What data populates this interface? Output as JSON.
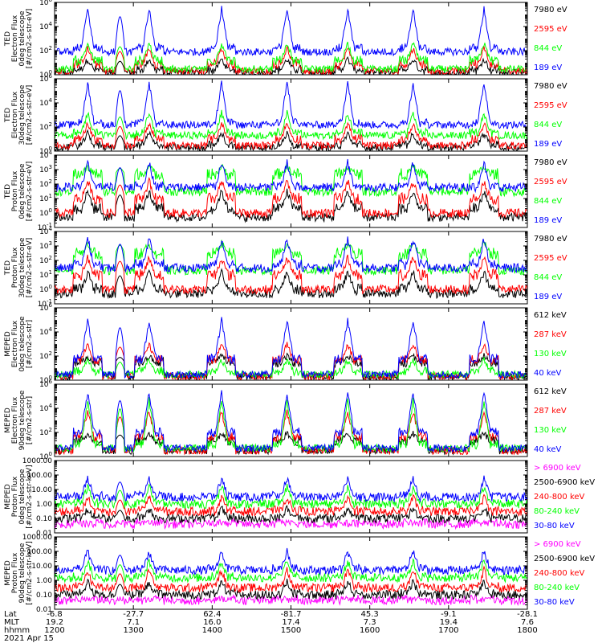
{
  "chart_data": [
    {
      "type": "line",
      "ylabel": [
        "TED",
        "Electron Flux",
        "0deg telescope",
        "[#/cm2-s-str-eV]"
      ],
      "ylim": [
        1,
        1000000
      ],
      "yscale": "log",
      "yticks": [
        {
          "v": 1,
          "b": "10",
          "e": "0"
        },
        {
          "v": 100,
          "b": "10",
          "e": "2"
        },
        {
          "v": 10000,
          "b": "10",
          "e": "4"
        },
        {
          "v": 1000000,
          "b": "10",
          "e": "6"
        }
      ],
      "series": [
        {
          "name": "7980 eV",
          "color": "#000000",
          "level": 2.5,
          "peak": 20,
          "quiet": 1.5
        },
        {
          "name": "2595 eV",
          "color": "#ff0000",
          "level": 8,
          "peak": 150,
          "quiet": 2
        },
        {
          "name": "844 eV",
          "color": "#00ff00",
          "level": 15,
          "peak": 400,
          "quiet": 3
        },
        {
          "name": "189 eV",
          "color": "#0000ff",
          "level": 150,
          "peak": 300000,
          "quiet": 80
        }
      ]
    },
    {
      "type": "line",
      "ylabel": [
        "TED",
        "Electron Flux",
        "30deg telescope",
        "[#/cm2-s-str-eV]"
      ],
      "ylim": [
        1,
        1000000
      ],
      "yscale": "log",
      "yticks": [
        {
          "v": 1,
          "b": "10",
          "e": "0"
        },
        {
          "v": 100,
          "b": "10",
          "e": "2"
        },
        {
          "v": 10000,
          "b": "10",
          "e": "4"
        },
        {
          "v": 1000000,
          "b": "10",
          "e": "6"
        }
      ],
      "series": [
        {
          "name": "7980 eV",
          "color": "#000000",
          "level": 3,
          "peak": 30,
          "quiet": 2
        },
        {
          "name": "2595 eV",
          "color": "#ff0000",
          "level": 10,
          "peak": 200,
          "quiet": 3
        },
        {
          "name": "844 eV",
          "color": "#00ff00",
          "level": 30,
          "peak": 1500,
          "quiet": 20
        },
        {
          "name": "189 eV",
          "color": "#0000ff",
          "level": 200,
          "peak": 500000,
          "quiet": 150
        }
      ]
    },
    {
      "type": "line",
      "ylabel": [
        "TED",
        "Proton Flux",
        "0deg telescope",
        "[#/cm2-s-str-eV]"
      ],
      "ylim": [
        0.1,
        10000
      ],
      "yscale": "log",
      "yticks": [
        {
          "v": 0.1,
          "b": "10",
          "e": "-1"
        },
        {
          "v": 1,
          "b": "10",
          "e": "0"
        },
        {
          "v": 10,
          "b": "10",
          "e": "1"
        },
        {
          "v": 100,
          "b": "10",
          "e": "2"
        },
        {
          "v": 1000,
          "b": "10",
          "e": "3"
        },
        {
          "v": 10000,
          "b": "10",
          "e": "4"
        }
      ],
      "series": [
        {
          "name": "7980 eV",
          "color": "#000000",
          "level": 2,
          "peak": 30,
          "quiet": 0.5
        },
        {
          "name": "2595 eV",
          "color": "#ff0000",
          "level": 10,
          "peak": 150,
          "quiet": 1
        },
        {
          "name": "844 eV",
          "color": "#00ff00",
          "level": 500,
          "peak": 1500,
          "quiet": 30
        },
        {
          "name": "189 eV",
          "color": "#0000ff",
          "level": 60,
          "peak": 3000,
          "quiet": 60
        }
      ]
    },
    {
      "type": "line",
      "ylabel": [
        "TED",
        "Proton Flux",
        "30deg telescope",
        "[#/cm2-s-str-eV]"
      ],
      "ylim": [
        0.1,
        10000
      ],
      "yscale": "log",
      "yticks": [
        {
          "v": 0.1,
          "b": "10",
          "e": "-1"
        },
        {
          "v": 1,
          "b": "10",
          "e": "0"
        },
        {
          "v": 10,
          "b": "10",
          "e": "1"
        },
        {
          "v": 100,
          "b": "10",
          "e": "2"
        },
        {
          "v": 1000,
          "b": "10",
          "e": "3"
        },
        {
          "v": 10000,
          "b": "10",
          "e": "4"
        }
      ],
      "series": [
        {
          "name": "7980 eV",
          "color": "#000000",
          "level": 1,
          "peak": 15,
          "quiet": 0.5
        },
        {
          "name": "2595 eV",
          "color": "#ff0000",
          "level": 10,
          "peak": 150,
          "quiet": 1
        },
        {
          "name": "844 eV",
          "color": "#00ff00",
          "level": 300,
          "peak": 1500,
          "quiet": 20
        },
        {
          "name": "189 eV",
          "color": "#0000ff",
          "level": 50,
          "peak": 3000,
          "quiet": 30
        }
      ]
    },
    {
      "type": "line",
      "ylabel": [
        "MEPED",
        "Electron Flux",
        "0deg telescope",
        "[#/cm2-s-str]"
      ],
      "ylim": [
        1,
        1000000
      ],
      "yscale": "log",
      "yticks": [
        {
          "v": 1,
          "b": "10",
          "e": "0"
        },
        {
          "v": 100,
          "b": "10",
          "e": "2"
        },
        {
          "v": 10000,
          "b": "10",
          "e": "4"
        },
        {
          "v": 1000000,
          "b": "10",
          "e": "6"
        }
      ],
      "series": [
        {
          "name": "612 keV",
          "color": "#000000",
          "level": 30,
          "peak": 100,
          "quiet": 2
        },
        {
          "name": "287 keV",
          "color": "#ff0000",
          "level": 50,
          "peak": 1000,
          "quiet": 2
        },
        {
          "name": "130 keV",
          "color": "#00ff00",
          "level": 5,
          "peak": 50,
          "quiet": 3
        },
        {
          "name": "40 keV",
          "color": "#0000ff",
          "level": 60,
          "peak": 100000,
          "quiet": 3
        }
      ]
    },
    {
      "type": "line",
      "ylabel": [
        "MEPED",
        "Electron Flux",
        "90deg telescope",
        "[#/cm2-s-str]"
      ],
      "ylim": [
        1,
        1000000
      ],
      "yscale": "log",
      "yticks": [
        {
          "v": 1,
          "b": "10",
          "e": "0"
        },
        {
          "v": 100,
          "b": "10",
          "e": "2"
        },
        {
          "v": 10000,
          "b": "10",
          "e": "4"
        },
        {
          "v": 1000000,
          "b": "10",
          "e": "6"
        }
      ],
      "series": [
        {
          "name": "612 keV",
          "color": "#000000",
          "level": 20,
          "peak": 80,
          "quiet": 3
        },
        {
          "name": "287 keV",
          "color": "#ff0000",
          "level": 40,
          "peak": 5000,
          "quiet": 3
        },
        {
          "name": "130 keV",
          "color": "#00ff00",
          "level": 10,
          "peak": 50000,
          "quiet": 5
        },
        {
          "name": "40 keV",
          "color": "#0000ff",
          "level": 100,
          "peak": 200000,
          "quiet": 5
        }
      ]
    },
    {
      "type": "line",
      "ylabel": [
        "MEPED",
        "Proton Flux",
        "0deg telescope",
        "[#/cm2-s-str-keV]"
      ],
      "ylim": [
        0.01,
        1000
      ],
      "yscale": "log",
      "yticks": [
        {
          "v": 0.01,
          "t": "0.01"
        },
        {
          "v": 0.1,
          "t": "0.10"
        },
        {
          "v": 1,
          "t": "1.00"
        },
        {
          "v": 10,
          "t": "10.00"
        },
        {
          "v": 100,
          "t": "100.00"
        },
        {
          "v": 1000,
          "t": "1000.00"
        }
      ],
      "series": [
        {
          "name": "> 6900 keV",
          "color": "#ff00ff",
          "level": 0.04,
          "peak": 0.04,
          "quiet": 0.04
        },
        {
          "name": "2500-6900 keV",
          "color": "#000000",
          "level": 0.1,
          "peak": 0.5,
          "quiet": 0.1
        },
        {
          "name": "240-800 keV",
          "color": "#ff0000",
          "level": 0.3,
          "peak": 3,
          "quiet": 0.3
        },
        {
          "name": "80-240 keV",
          "color": "#00ff00",
          "level": 1,
          "peak": 15,
          "quiet": 1
        },
        {
          "name": "30-80 keV",
          "color": "#0000ff",
          "level": 3,
          "peak": 60,
          "quiet": 3
        }
      ]
    },
    {
      "type": "line",
      "ylabel": [
        "MEPED",
        "Proton Flux",
        "90deg telescope",
        "[#/cm2-s-str-keV]"
      ],
      "ylim": [
        0.01,
        1000
      ],
      "yscale": "log",
      "yticks": [
        {
          "v": 0.01,
          "t": "0.01"
        },
        {
          "v": 0.1,
          "t": "0.10"
        },
        {
          "v": 1,
          "t": "1.00"
        },
        {
          "v": 10,
          "t": "10.00"
        },
        {
          "v": 100,
          "t": "100.00"
        },
        {
          "v": 1000,
          "t": "1000.00"
        }
      ],
      "series": [
        {
          "name": "> 6900 keV",
          "color": "#ff00ff",
          "level": 0.04,
          "peak": 0.04,
          "quiet": 0.04
        },
        {
          "name": "2500-6900 keV",
          "color": "#000000",
          "level": 0.1,
          "peak": 0.8,
          "quiet": 0.1
        },
        {
          "name": "240-800 keV",
          "color": "#ff0000",
          "level": 0.3,
          "peak": 5,
          "quiet": 0.3
        },
        {
          "name": "80-240 keV",
          "color": "#00ff00",
          "level": 1.5,
          "peak": 20,
          "quiet": 1.5
        },
        {
          "name": "30-80 keV",
          "color": "#0000ff",
          "level": 5,
          "peak": 100,
          "quiet": 5
        }
      ]
    }
  ],
  "time_axis": {
    "start_label": "1200",
    "end_label": "1800",
    "ticks": [
      {
        "hhmm": "1200",
        "lat": "-6.8",
        "mlt": "19.2"
      },
      {
        "hhmm": "1300",
        "lat": "-27.7",
        "mlt": "7.1"
      },
      {
        "hhmm": "1400",
        "lat": "62.4",
        "mlt": "16.0"
      },
      {
        "hhmm": "1500",
        "lat": "-81.7",
        "mlt": "17.4"
      },
      {
        "hhmm": "1600",
        "lat": "45.3",
        "mlt": "7.3"
      },
      {
        "hhmm": "1700",
        "lat": "-9.1",
        "mlt": "19.4"
      },
      {
        "hhmm": "1800",
        "lat": "-28.1",
        "mlt": "7.6"
      }
    ],
    "row_labels": [
      "Lat",
      "MLT",
      "hhmm"
    ],
    "date": "2021 Apr 15"
  },
  "events": {
    "bursts_hours": [
      12.42,
      13.2,
      14.12,
      14.95,
      15.72,
      16.55,
      17.45
    ],
    "radiation_belt_hour": 12.83,
    "saa_secondary_hour": 14.22
  }
}
